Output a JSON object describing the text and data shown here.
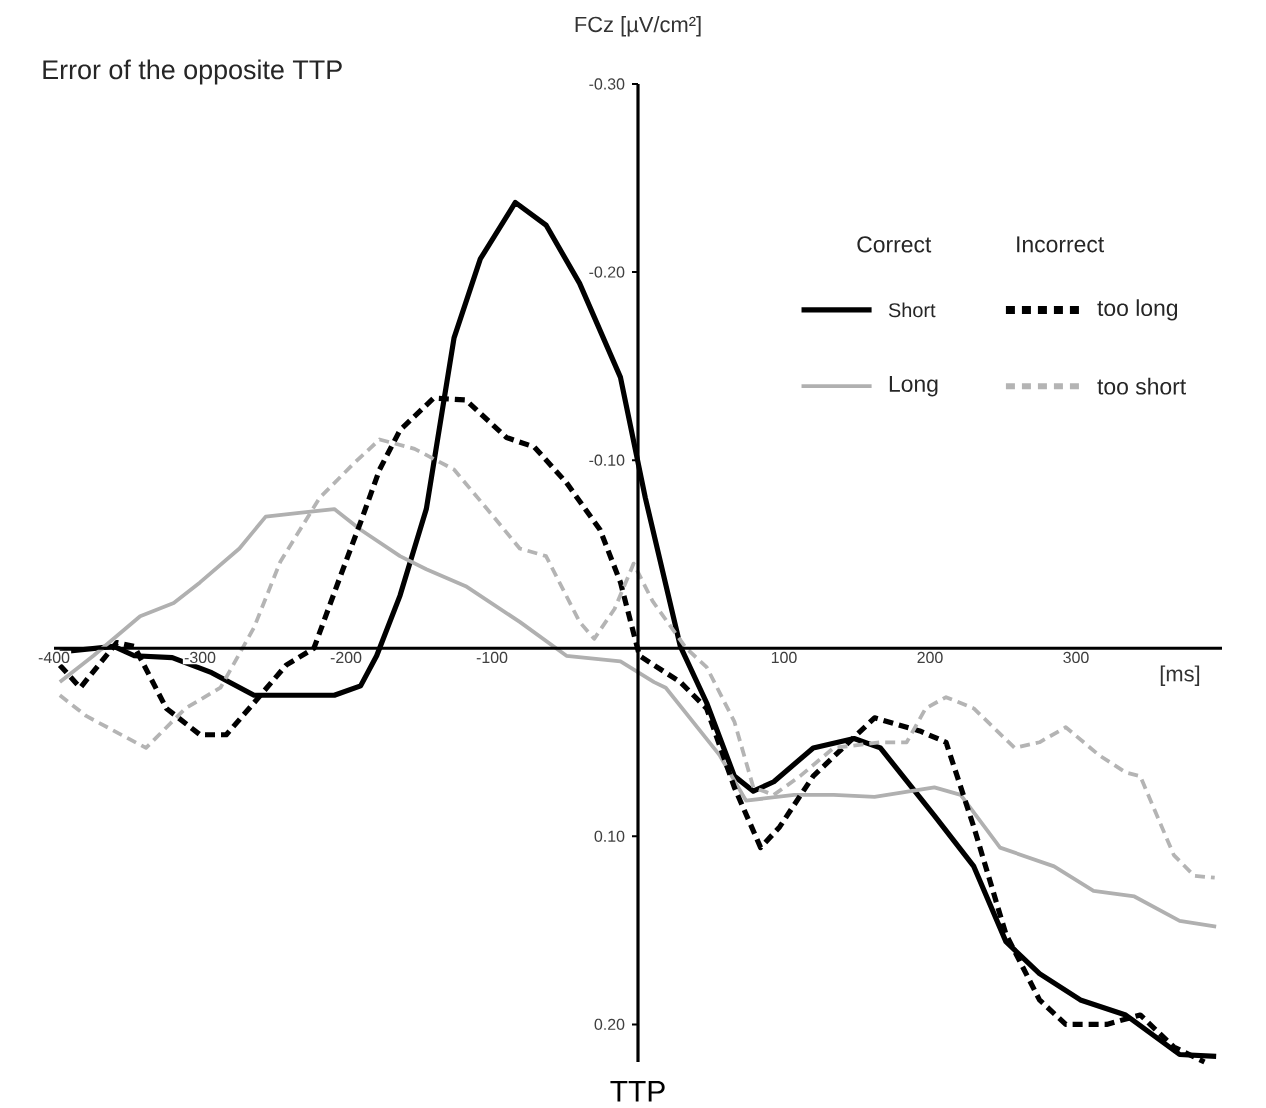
{
  "chart_data": {
    "type": "line",
    "title": "Error of the opposite TTP",
    "xlabel": "[ms]",
    "ylabel": "FCz [µV/cm²]",
    "annotations": [
      "Correct",
      "Incorrect",
      "TTP"
    ],
    "xlim": [
      -400,
      400
    ],
    "xticks": [
      -400,
      -300,
      -200,
      -100,
      100,
      200,
      300
    ],
    "ylim": [
      0.22,
      -0.3
    ],
    "yticks": [
      {
        "value": -0.3,
        "label": "-0.30"
      },
      {
        "value": -0.2,
        "label": "-0.20"
      },
      {
        "value": -0.1,
        "label": "-0.10"
      },
      {
        "value": 0.1,
        "label": "0.10"
      },
      {
        "value": 0.2,
        "label": "0.20"
      }
    ],
    "legend": "top right",
    "series": [
      {
        "name": "Short",
        "color": "#000000",
        "line_style": "solid",
        "x": [
          -396,
          -359,
          -345,
          -319,
          -292,
          -263,
          -208,
          -190,
          -179,
          -163,
          -145,
          -126,
          -108,
          -84,
          -63,
          -40,
          -12,
          5,
          29,
          47,
          66,
          79,
          93,
          120,
          148,
          166,
          203,
          230,
          252,
          275,
          303,
          334,
          371,
          396
        ],
        "values": [
          0.002,
          -0.001,
          0.004,
          0.005,
          0.013,
          0.025,
          0.025,
          0.02,
          0.004,
          -0.028,
          -0.074,
          -0.165,
          -0.207,
          -0.237,
          -0.225,
          -0.194,
          -0.144,
          -0.08,
          -0.001,
          0.029,
          0.068,
          0.076,
          0.071,
          0.053,
          0.048,
          0.053,
          0.089,
          0.116,
          0.156,
          0.173,
          0.187,
          0.195,
          0.216,
          0.217
        ]
      },
      {
        "name": "Long",
        "color": "#b0b0b0",
        "line_style": "solid",
        "x": [
          -396,
          -373,
          -341,
          -318,
          -300,
          -273,
          -255,
          -232,
          -208,
          -190,
          -163,
          -145,
          -118,
          -81,
          -49,
          -12,
          11,
          19,
          56,
          74,
          107,
          134,
          162,
          203,
          221,
          248,
          285,
          312,
          340,
          371,
          396
        ],
        "values": [
          0.018,
          0.004,
          -0.017,
          -0.024,
          -0.035,
          -0.053,
          -0.07,
          -0.072,
          -0.074,
          -0.063,
          -0.049,
          -0.042,
          -0.033,
          -0.014,
          0.004,
          0.007,
          0.018,
          0.021,
          0.057,
          0.081,
          0.078,
          0.078,
          0.079,
          0.074,
          0.078,
          0.106,
          0.116,
          0.129,
          0.132,
          0.145,
          0.148
        ]
      },
      {
        "name": "too long",
        "color": "#000000",
        "line_style": "dashed",
        "x": [
          -396,
          -382,
          -357,
          -345,
          -323,
          -300,
          -282,
          -263,
          -241,
          -222,
          -204,
          -190,
          -177,
          -163,
          -140,
          -118,
          -90,
          -71,
          -49,
          -26,
          -12,
          1,
          29,
          47,
          66,
          84,
          97,
          120,
          162,
          193,
          211,
          230,
          252,
          275,
          293,
          321,
          344,
          367,
          388
        ],
        "values": [
          0.009,
          0.021,
          -0.003,
          -0.001,
          0.032,
          0.046,
          0.046,
          0.029,
          0.009,
          0,
          -0.038,
          -0.067,
          -0.095,
          -0.116,
          -0.133,
          -0.132,
          -0.112,
          -0.107,
          -0.088,
          -0.063,
          -0.035,
          0.004,
          0.018,
          0.032,
          0.074,
          0.106,
          0.095,
          0.068,
          0.037,
          0.044,
          0.05,
          0.095,
          0.152,
          0.187,
          0.2,
          0.2,
          0.195,
          0.212,
          0.22
        ]
      },
      {
        "name": "too short",
        "color": "#b4b4b4",
        "line_style": "dashed",
        "x": [
          -396,
          -378,
          -337,
          -310,
          -286,
          -263,
          -245,
          -218,
          -195,
          -177,
          -153,
          -126,
          -99,
          -81,
          -63,
          -40,
          -30,
          -16,
          -3,
          10,
          33,
          47,
          66,
          79,
          93,
          111,
          134,
          166,
          184,
          197,
          211,
          230,
          258,
          275,
          293,
          316,
          334,
          344,
          367,
          381,
          395
        ],
        "values": [
          0.025,
          0.036,
          0.053,
          0.032,
          0.021,
          -0.011,
          -0.046,
          -0.08,
          -0.098,
          -0.111,
          -0.106,
          -0.095,
          -0.07,
          -0.053,
          -0.049,
          -0.014,
          -0.005,
          -0.021,
          -0.045,
          -0.025,
          0,
          0.01,
          0.039,
          0.074,
          0.078,
          0.068,
          0.053,
          0.05,
          0.05,
          0.032,
          0.026,
          0.032,
          0.053,
          0.05,
          0.042,
          0.057,
          0.066,
          0.068,
          0.11,
          0.121,
          0.122
        ]
      }
    ]
  }
}
